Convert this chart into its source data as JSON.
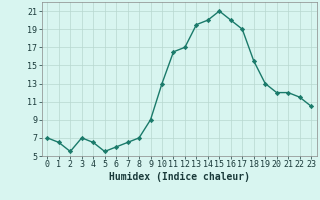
{
  "x": [
    0,
    1,
    2,
    3,
    4,
    5,
    6,
    7,
    8,
    9,
    10,
    11,
    12,
    13,
    14,
    15,
    16,
    17,
    18,
    19,
    20,
    21,
    22,
    23
  ],
  "y": [
    7,
    6.5,
    5.5,
    7,
    6.5,
    5.5,
    6,
    6.5,
    7,
    9,
    13,
    16.5,
    17,
    19.5,
    20,
    21,
    20,
    19,
    15.5,
    13,
    12,
    12,
    11.5,
    10.5
  ],
  "xlabel": "Humidex (Indice chaleur)",
  "ylim": [
    5,
    22
  ],
  "xlim": [
    -0.5,
    23.5
  ],
  "yticks": [
    5,
    7,
    9,
    11,
    13,
    15,
    17,
    19,
    21
  ],
  "xticks": [
    0,
    1,
    2,
    3,
    4,
    5,
    6,
    7,
    8,
    9,
    10,
    11,
    12,
    13,
    14,
    15,
    16,
    17,
    18,
    19,
    20,
    21,
    22,
    23
  ],
  "line_color": "#1a7a6a",
  "marker": "D",
  "marker_size": 2.2,
  "bg_color": "#d8f5f0",
  "grid_color": "#b8d8d0",
  "axis_label_color": "#1a3a3a",
  "tick_color": "#1a3a3a",
  "xlabel_fontsize": 7,
  "tick_fontsize": 6,
  "line_width": 1.0
}
